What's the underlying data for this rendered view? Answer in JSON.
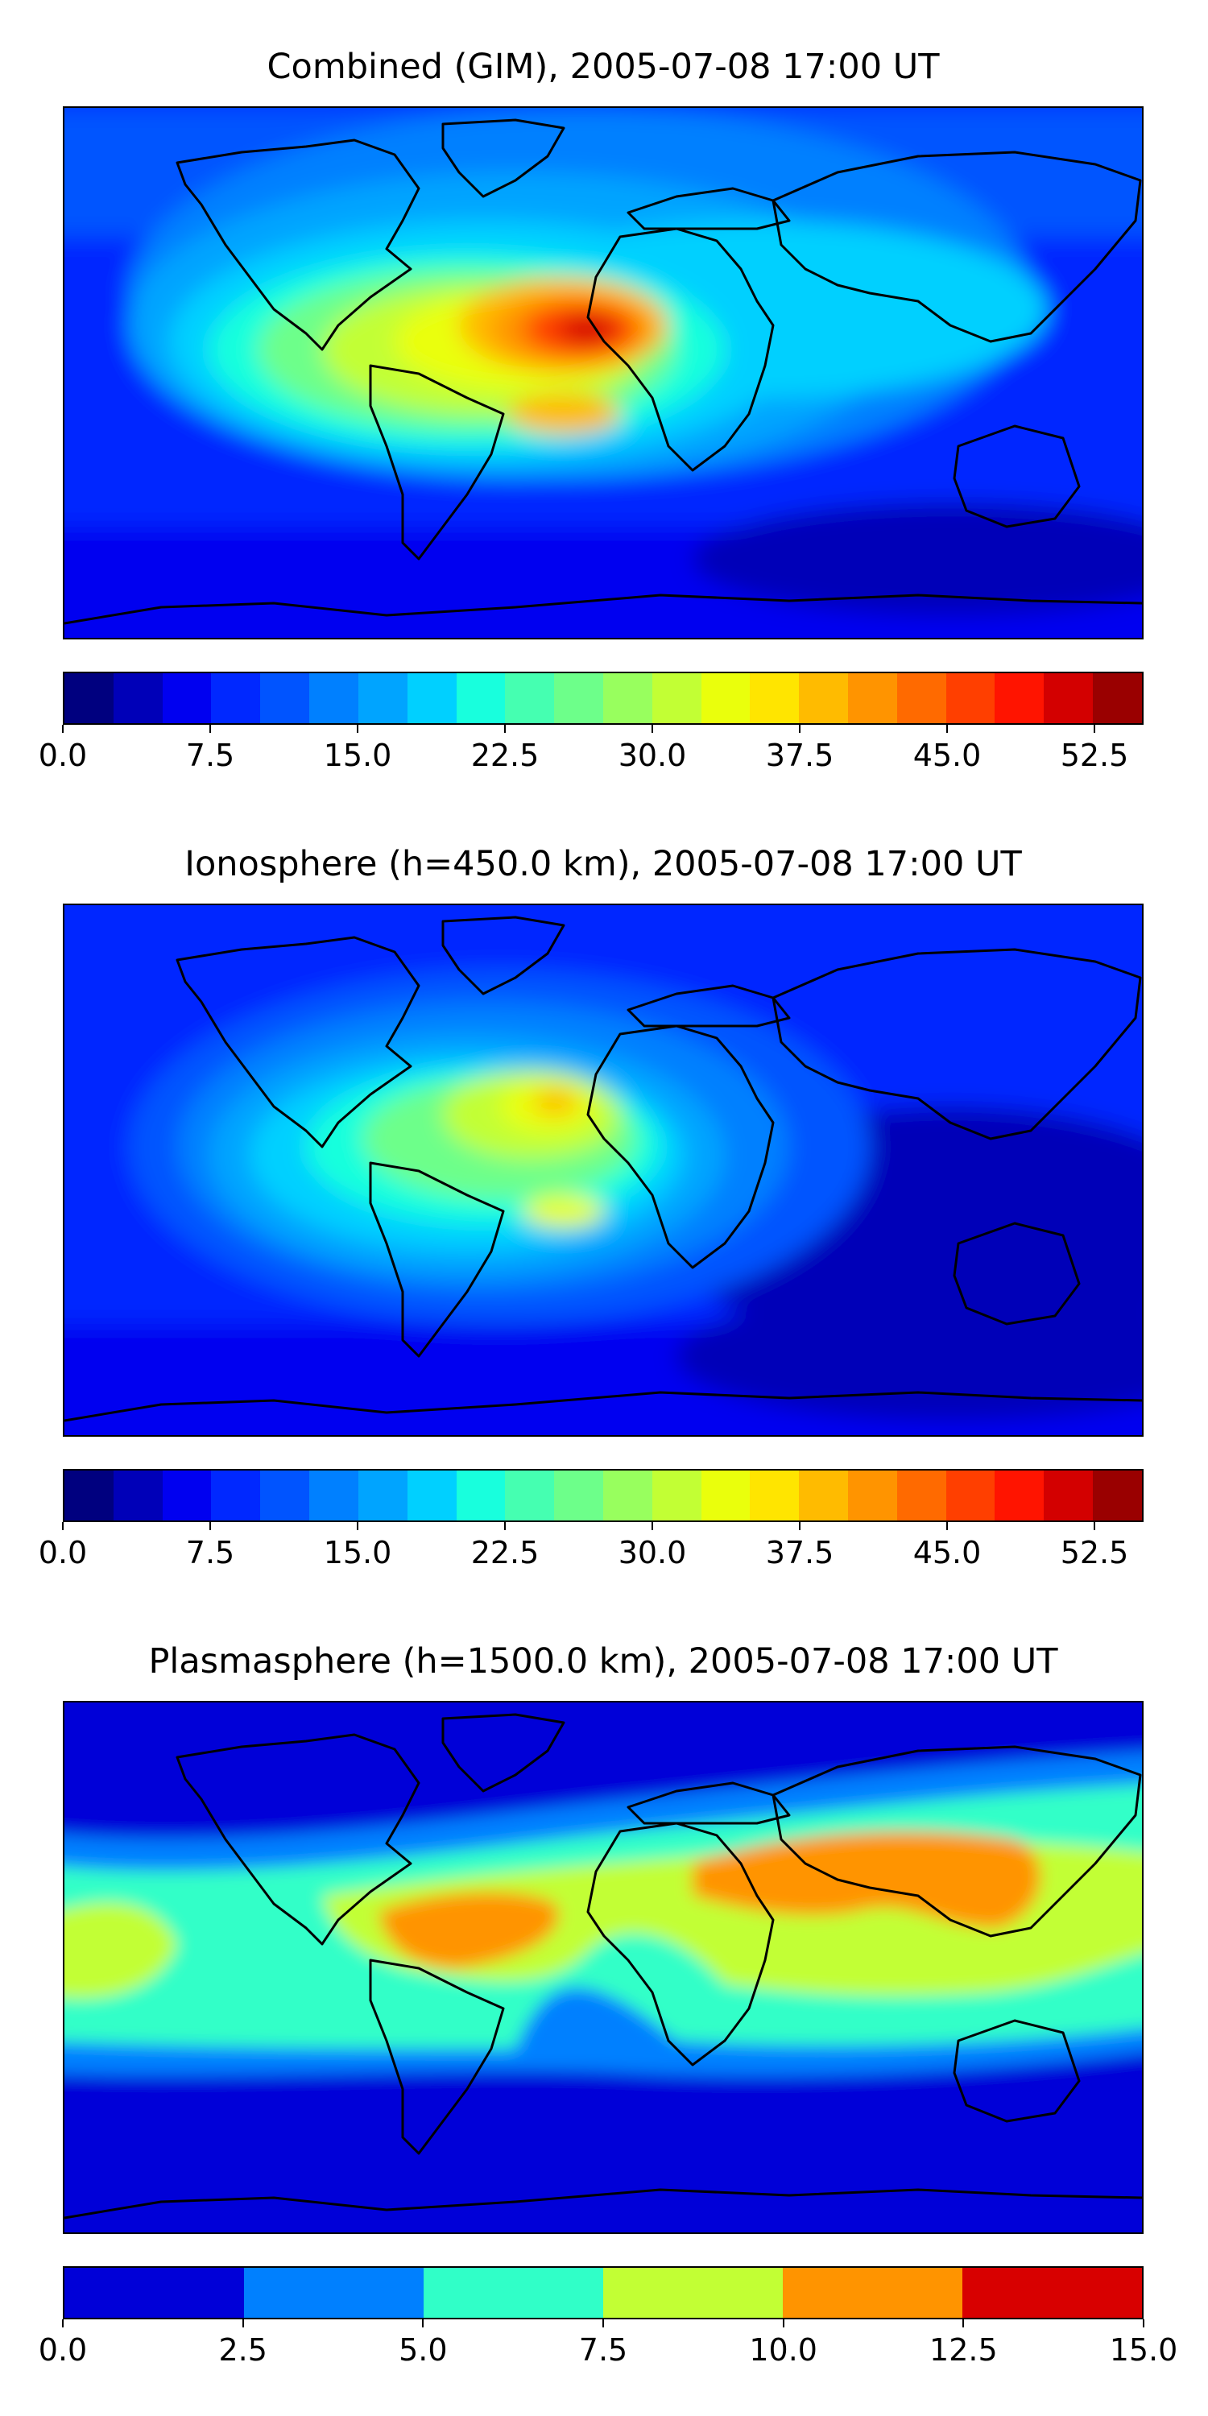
{
  "panels": [
    {
      "title": "Combined (GIM), 2005-07-08 17:00 UT",
      "colorbar": {
        "min": 0.0,
        "max": 55.0,
        "ticks": [
          "0.0",
          "7.5",
          "15.0",
          "22.5",
          "30.0",
          "37.5",
          "45.0",
          "52.5"
        ],
        "tick_values": [
          0,
          7.5,
          15,
          22.5,
          30,
          37.5,
          45,
          52.5
        ],
        "colors": [
          "#00007f",
          "#0000b8",
          "#0000f0",
          "#0028ff",
          "#0054ff",
          "#0080ff",
          "#00a4ff",
          "#00d0ff",
          "#18ffdd",
          "#45ffb1",
          "#6dff8a",
          "#98ff5e",
          "#c2ff34",
          "#eaff0c",
          "#ffe500",
          "#ffbb00",
          "#ff9400",
          "#ff6a00",
          "#ff3f00",
          "#ff1400",
          "#d30000",
          "#9a0000"
        ]
      },
      "peak_value": 52.5,
      "peak_location": "equatorial Atlantic, west of Africa"
    },
    {
      "title": "Ionosphere  (h=450.0 km), 2005-07-08 17:00 UT",
      "colorbar": {
        "min": 0.0,
        "max": 55.0,
        "ticks": [
          "0.0",
          "7.5",
          "15.0",
          "22.5",
          "30.0",
          "37.5",
          "45.0",
          "52.5"
        ],
        "tick_values": [
          0,
          7.5,
          15,
          22.5,
          30,
          37.5,
          45,
          52.5
        ],
        "colors": [
          "#00007f",
          "#0000b8",
          "#0000f0",
          "#0028ff",
          "#0054ff",
          "#0080ff",
          "#00a4ff",
          "#00d0ff",
          "#18ffdd",
          "#45ffb1",
          "#6dff8a",
          "#98ff5e",
          "#c2ff34",
          "#eaff0c",
          "#ffe500",
          "#ffbb00",
          "#ff9400",
          "#ff6a00",
          "#ff3f00",
          "#ff1400",
          "#d30000",
          "#9a0000"
        ]
      },
      "peak_value": 37.5,
      "peak_location": "west of Africa"
    },
    {
      "title": "Plasmasphere (h=1500.0 km), 2005-07-08 17:00 UT",
      "colorbar": {
        "min": 0.0,
        "max": 15.0,
        "ticks": [
          "0.0",
          "2.5",
          "5.0",
          "7.5",
          "10.0",
          "12.5",
          "15.0"
        ],
        "tick_values": [
          0,
          2.5,
          5,
          7.5,
          10,
          12.5,
          15
        ],
        "colors": [
          "#0000d8",
          "#0080ff",
          "#30ffc8",
          "#c2ff34",
          "#ff9400",
          "#d80000"
        ]
      },
      "peak_value": 12.5,
      "peak_location": "northern Africa to Asia band"
    }
  ],
  "colors": {
    "coastline": "#000000",
    "background": "#ffffff"
  }
}
